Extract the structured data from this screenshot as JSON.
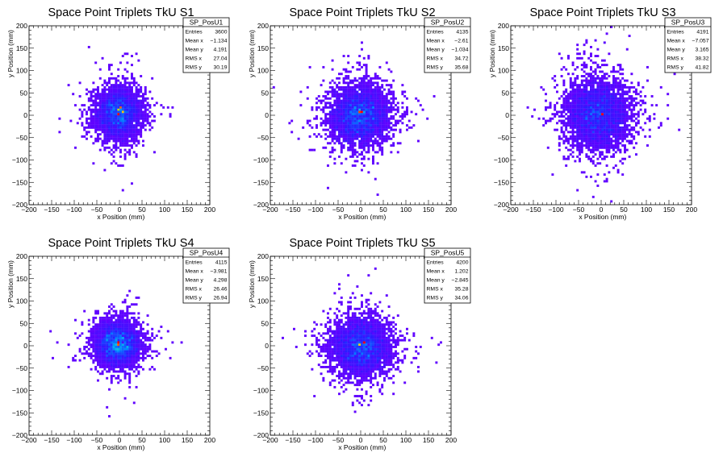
{
  "chart_data": [
    {
      "type": "heatmap",
      "title": "Space Point Triplets TkU S1",
      "xlabel": "x Position (mm)",
      "ylabel": "y Position (mm)",
      "xlim": [
        -200,
        200
      ],
      "ylim": [
        -200,
        200
      ],
      "xticks": [
        "−200",
        "−150",
        "−100",
        "−50",
        "0",
        "50",
        "100",
        "150",
        "200"
      ],
      "yticks": [
        "200",
        "150",
        "100",
        "50",
        "0",
        "−50",
        "−100",
        "−150",
        "−200"
      ],
      "stats": {
        "name": "SP_PosU1",
        "rows": [
          {
            "label": "Entries",
            "value": "3600"
          },
          {
            "label": "Mean x",
            "value": "−1.134"
          },
          {
            "label": "Mean y",
            "value": "4.191"
          },
          {
            "label": "RMS x",
            "value": "27.04"
          },
          {
            "label": "RMS y",
            "value": "30.19"
          }
        ]
      },
      "distribution": {
        "mean_x": -1.134,
        "mean_y": 4.191,
        "rms_x": 27.04,
        "rms_y": 30.19,
        "entries": 3600
      },
      "peak_cells": [
        [
          -5,
          10
        ],
        [
          5,
          5
        ],
        [
          -5,
          0
        ],
        [
          0,
          15
        ]
      ]
    },
    {
      "type": "heatmap",
      "title": "Space Point Triplets TkU S2",
      "xlabel": "x Position (mm)",
      "ylabel": "y Position (mm)",
      "xlim": [
        -200,
        200
      ],
      "ylim": [
        -200,
        200
      ],
      "xticks": [
        "−200",
        "−150",
        "−100",
        "−50",
        "0",
        "50",
        "100",
        "150",
        "200"
      ],
      "yticks": [
        "200",
        "150",
        "100",
        "50",
        "0",
        "−50",
        "−100",
        "−150",
        "−200"
      ],
      "stats": {
        "name": "SP_PosU2",
        "rows": [
          {
            "label": "Entries",
            "value": "4135"
          },
          {
            "label": "Mean x",
            "value": "−2.61"
          },
          {
            "label": "Mean y",
            "value": "−1.034"
          },
          {
            "label": "RMS x",
            "value": "34.72"
          },
          {
            "label": "RMS y",
            "value": "35.68"
          }
        ]
      },
      "distribution": {
        "mean_x": -2.61,
        "mean_y": -1.034,
        "rms_x": 34.72,
        "rms_y": 35.68,
        "entries": 4135
      },
      "peak_cells": [
        [
          0,
          5
        ],
        [
          -5,
          5
        ]
      ]
    },
    {
      "type": "heatmap",
      "title": "Space Point Triplets TkU S3",
      "xlabel": "x Position (mm)",
      "ylabel": "y Position (mm)",
      "xlim": [
        -200,
        200
      ],
      "ylim": [
        -200,
        200
      ],
      "xticks": [
        "−200",
        "−150",
        "−100",
        "−50",
        "0",
        "50",
        "100",
        "150",
        "200"
      ],
      "yticks": [
        "200",
        "150",
        "100",
        "50",
        "0",
        "−50",
        "−100",
        "−150",
        "−200"
      ],
      "stats": {
        "name": "SP_PosU3",
        "rows": [
          {
            "label": "Entries",
            "value": "4191"
          },
          {
            "label": "Mean x",
            "value": "−7.057"
          },
          {
            "label": "Mean y",
            "value": "3.165"
          },
          {
            "label": "RMS x",
            "value": "38.32"
          },
          {
            "label": "RMS y",
            "value": "41.82"
          }
        ]
      },
      "distribution": {
        "mean_x": -7.057,
        "mean_y": 3.165,
        "rms_x": 38.32,
        "rms_y": 41.82,
        "entries": 4191
      },
      "peak_cells": [
        [
          0,
          0
        ]
      ]
    },
    {
      "type": "heatmap",
      "title": "Space Point Triplets TkU S4",
      "xlabel": "x Position (mm)",
      "ylabel": "y Position (mm)",
      "xlim": [
        -200,
        200
      ],
      "ylim": [
        -200,
        200
      ],
      "xticks": [
        "−200",
        "−150",
        "−100",
        "−50",
        "0",
        "50",
        "100",
        "150",
        "200"
      ],
      "yticks": [
        "200",
        "150",
        "100",
        "50",
        "0",
        "−50",
        "−100",
        "−150",
        "−200"
      ],
      "stats": {
        "name": "SP_PosU4",
        "rows": [
          {
            "label": "Entries",
            "value": "4115"
          },
          {
            "label": "Mean x",
            "value": "−3.981"
          },
          {
            "label": "Mean y",
            "value": "4.298"
          },
          {
            "label": "RMS x",
            "value": "26.46"
          },
          {
            "label": "RMS y",
            "value": "26.94"
          }
        ]
      },
      "distribution": {
        "mean_x": -3.981,
        "mean_y": 4.298,
        "rms_x": 26.46,
        "rms_y": 26.94,
        "entries": 4115
      },
      "peak_cells": [
        [
          -5,
          5
        ],
        [
          -5,
          0
        ]
      ]
    },
    {
      "type": "heatmap",
      "title": "Space Point Triplets TkU S5",
      "xlabel": "x Position (mm)",
      "ylabel": "y Position (mm)",
      "xlim": [
        -200,
        200
      ],
      "ylim": [
        -200,
        200
      ],
      "xticks": [
        "−200",
        "−150",
        "−100",
        "−50",
        "0",
        "50",
        "100",
        "150",
        "200"
      ],
      "yticks": [
        "200",
        "150",
        "100",
        "50",
        "0",
        "−50",
        "−100",
        "−150",
        "−200"
      ],
      "stats": {
        "name": "SP_PosU5",
        "rows": [
          {
            "label": "Entries",
            "value": "4200"
          },
          {
            "label": "Mean x",
            "value": "1.202"
          },
          {
            "label": "Mean y",
            "value": "−2.845"
          },
          {
            "label": "RMS x",
            "value": "35.28"
          },
          {
            "label": "RMS y",
            "value": "34.06"
          }
        ]
      },
      "distribution": {
        "mean_x": 1.202,
        "mean_y": -2.845,
        "rms_x": 35.28,
        "rms_y": 34.06,
        "entries": 4200
      },
      "peak_cells": [
        [
          -5,
          0
        ],
        [
          5,
          5
        ]
      ]
    }
  ]
}
